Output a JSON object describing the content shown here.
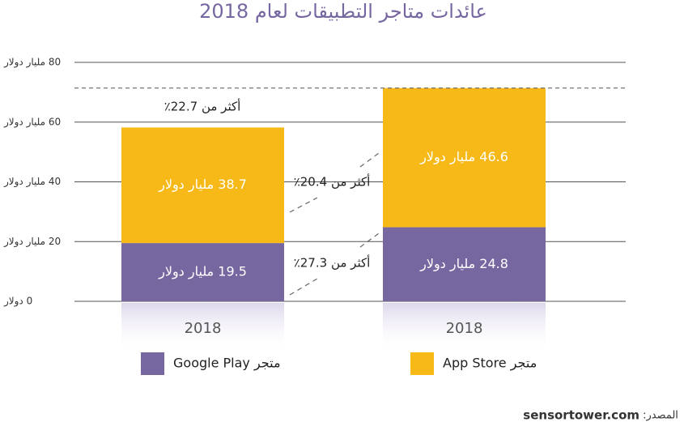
{
  "chart_data": {
    "type": "bar",
    "stacked": true,
    "title": "عائدات متاجر التطبيقات لعام 2018",
    "categories": [
      "2018",
      "2018"
    ],
    "series": [
      {
        "color": "#7767a1",
        "values": [
          19.5,
          24.8
        ],
        "value_labels": [
          "19.5 مليار دولار",
          "24.8 مليار دولار"
        ]
      },
      {
        "color": "#f7b917",
        "values": [
          38.7,
          46.6
        ],
        "value_labels": [
          "38.7 مليار دولار",
          "46.6 مليار دولار"
        ]
      }
    ],
    "ylim": [
      0,
      80
    ],
    "yticks": [
      {
        "value": 0,
        "label": "0 دولار"
      },
      {
        "value": 20,
        "label": "20 مليار دولار"
      },
      {
        "value": 40,
        "label": "40 مليار دولار"
      },
      {
        "value": 60,
        "label": "60 مليار دولار"
      },
      {
        "value": 80,
        "label": "80 مليار دولار"
      }
    ],
    "grid": true,
    "legend": [
      {
        "label": "متجر Google Play",
        "color": "#7767a1"
      },
      {
        "label": "متجر App Store",
        "color": "#f7b917"
      }
    ],
    "annotations": [
      "أكثر من 22.7٪",
      "أكثر من 20.4٪",
      "أكثر من 27.3٪"
    ],
    "source_label": "المصدر:",
    "source": "sensortower.com"
  }
}
